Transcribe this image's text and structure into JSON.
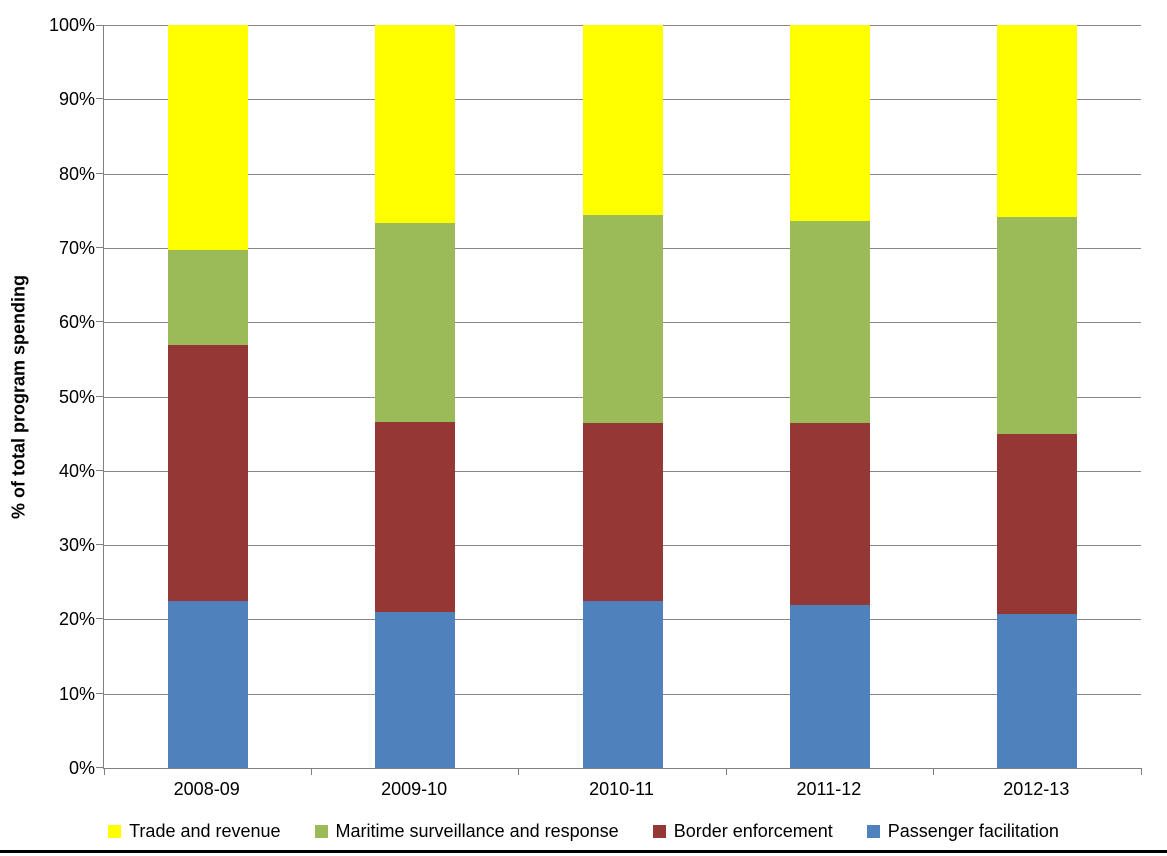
{
  "chart_data": {
    "type": "bar",
    "stacked": true,
    "stacking": "percent",
    "title": "",
    "xlabel": "",
    "ylabel": "% of total program spending",
    "categories": [
      "2008-09",
      "2009-10",
      "2010-11",
      "2011-12",
      "2012-13"
    ],
    "series": [
      {
        "name": "Passenger facilitation",
        "color": "#4F81BD",
        "values": [
          22.5,
          21.0,
          22.5,
          22.0,
          20.7
        ]
      },
      {
        "name": "Border enforcement",
        "color": "#953734",
        "values": [
          34.5,
          25.6,
          23.9,
          24.4,
          24.3
        ]
      },
      {
        "name": "Maritime surveillance and response",
        "color": "#9BBB59",
        "values": [
          12.7,
          26.7,
          28.0,
          27.2,
          29.1
        ]
      },
      {
        "name": "Trade and revenue",
        "color": "#FFFF00",
        "values": [
          30.3,
          26.7,
          25.6,
          26.4,
          25.9
        ]
      }
    ],
    "ylim": [
      0,
      100
    ],
    "y_ticks": [
      "0%",
      "10%",
      "20%",
      "30%",
      "40%",
      "50%",
      "60%",
      "70%",
      "80%",
      "90%",
      "100%"
    ],
    "grid": true,
    "legend_position": "bottom",
    "legend_order": [
      "Trade and revenue",
      "Maritime surveillance and response",
      "Border enforcement",
      "Passenger facilitation"
    ]
  },
  "style": {
    "grid_color": "#878787",
    "axis_color": "#808080",
    "text_color": "#000000",
    "bottom_rule_color": "#000000",
    "background": "#FFFFFF"
  }
}
